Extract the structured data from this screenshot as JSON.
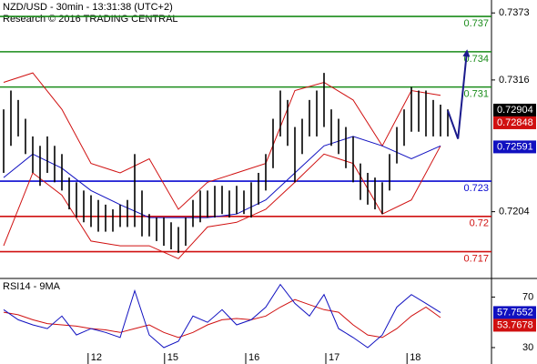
{
  "chart_data": [
    {
      "type": "range",
      "title": "NZD/USD - 30min - 13:31:38 (UTC+2)",
      "subtitle": "Research © 2016 TRADING CENTRAL",
      "color": "#000000",
      "x": [
        0,
        1,
        2,
        3,
        4,
        5,
        6,
        7,
        8,
        9,
        10,
        11,
        12,
        13,
        14,
        15,
        16,
        17,
        18,
        19,
        20,
        21,
        22,
        23,
        24,
        25,
        26,
        27,
        28,
        29,
        30,
        31,
        32,
        33,
        34,
        35,
        36,
        37,
        38,
        39,
        40,
        41,
        42,
        43,
        44,
        45,
        46,
        47,
        48,
        49,
        50,
        51,
        52,
        53,
        54,
        55,
        56,
        57,
        58,
        59,
        60,
        61
      ],
      "highs": [
        0.7291,
        0.7307,
        0.7299,
        0.7283,
        0.7268,
        0.726,
        0.7268,
        0.726,
        0.7253,
        0.7233,
        0.7229,
        0.7222,
        0.7218,
        0.7214,
        0.721,
        0.7206,
        0.721,
        0.7214,
        0.7253,
        0.7222,
        0.7202,
        0.7199,
        0.7199,
        0.7195,
        0.7191,
        0.7199,
        0.7214,
        0.7222,
        0.7222,
        0.7226,
        0.7226,
        0.7222,
        0.7226,
        0.7222,
        0.7229,
        0.7237,
        0.7253,
        0.7283,
        0.7307,
        0.7299,
        0.7276,
        0.7283,
        0.7299,
        0.7307,
        0.7322,
        0.7291,
        0.7283,
        0.7276,
        0.7268,
        0.7245,
        0.7237,
        0.7233,
        0.7229,
        0.7253,
        0.7276,
        0.7291,
        0.731,
        0.7307,
        0.7307,
        0.7299,
        0.7295,
        0.7291
      ],
      "lows": [
        0.7237,
        0.726,
        0.7268,
        0.7253,
        0.7237,
        0.7226,
        0.7237,
        0.7229,
        0.7222,
        0.7206,
        0.7199,
        0.7195,
        0.7191,
        0.7187,
        0.7187,
        0.7187,
        0.7191,
        0.7191,
        0.7191,
        0.7183,
        0.7183,
        0.7179,
        0.7175,
        0.7172,
        0.7169,
        0.7175,
        0.7191,
        0.7195,
        0.7199,
        0.7199,
        0.7202,
        0.7199,
        0.7202,
        0.7202,
        0.7199,
        0.721,
        0.7222,
        0.7241,
        0.7268,
        0.726,
        0.7229,
        0.7253,
        0.7268,
        0.7268,
        0.7276,
        0.726,
        0.7253,
        0.7241,
        0.7229,
        0.7214,
        0.721,
        0.7206,
        0.7202,
        0.7222,
        0.7245,
        0.726,
        0.7272,
        0.7272,
        0.7268,
        0.7268,
        0.7268,
        0.7268
      ],
      "bands": {
        "x": [
          0,
          4,
          8,
          12,
          16,
          20,
          24,
          28,
          32,
          36,
          40,
          44,
          48,
          52,
          56,
          60
        ],
        "upper": [
          0.7314,
          0.7322,
          0.7291,
          0.7245,
          0.7237,
          0.7249,
          0.7206,
          0.7229,
          0.7237,
          0.7245,
          0.7307,
          0.7314,
          0.7299,
          0.726,
          0.7307,
          0.7303
        ],
        "middle": [
          0.7233,
          0.7253,
          0.7241,
          0.7222,
          0.721,
          0.7199,
          0.7199,
          0.7199,
          0.7202,
          0.7214,
          0.7237,
          0.726,
          0.7268,
          0.726,
          0.7249,
          0.726
        ],
        "lower": [
          0.7175,
          0.7237,
          0.7218,
          0.7179,
          0.7175,
          0.7175,
          0.7164,
          0.7191,
          0.7195,
          0.7206,
          0.7229,
          0.7253,
          0.7245,
          0.7202,
          0.7214,
          0.726
        ],
        "band_color": "#d01010",
        "middle_color": "#1010c0"
      },
      "forecast": {
        "x": [
          61,
          62.4,
          63.6
        ],
        "values": [
          0.729,
          0.7266,
          0.7339
        ],
        "color": "#1a1a8c"
      },
      "levels": [
        {
          "value": 0.737,
          "color": "#1a8c1a"
        },
        {
          "value": 0.734,
          "color": "#1a8c1a"
        },
        {
          "value": 0.731,
          "color": "#1a8c1a"
        },
        {
          "value": 0.723,
          "color": "#0a0ad0"
        },
        {
          "value": 0.72,
          "color": "#d01010"
        },
        {
          "value": 0.717,
          "color": "#d01010"
        }
      ],
      "price_labels": [
        {
          "value": 0.72904,
          "color": "#000000"
        },
        {
          "value": 0.72848,
          "color": "#d01010"
        },
        {
          "value": 0.72591,
          "color": "#1010c0"
        }
      ],
      "xlim": [
        -0.5,
        67
      ],
      "xticks": [
        {
          "value": 11.6,
          "label": "12"
        },
        {
          "value": 22.1,
          "label": "15"
        },
        {
          "value": 33.25,
          "label": "16"
        },
        {
          "value": 44.25,
          "label": "17"
        },
        {
          "value": 55.4,
          "label": "18"
        }
      ],
      "ylim": [
        0.7148,
        0.7384
      ],
      "yticks": [
        0.7373,
        0.7316,
        0.7204
      ]
    },
    {
      "type": "line",
      "title": "RSI14 - 9MA",
      "x": [
        0,
        2,
        4,
        6,
        8,
        10,
        12,
        14,
        16,
        18,
        20,
        22,
        24,
        26,
        28,
        30,
        32,
        34,
        36,
        38,
        40,
        42,
        44,
        46,
        48,
        50,
        52,
        54,
        56,
        58,
        60
      ],
      "series": [
        {
          "color": "#1010c0",
          "values": [
            60,
            52,
            48,
            45,
            55,
            40,
            45,
            42,
            38,
            75,
            40,
            30,
            35,
            55,
            50,
            60,
            48,
            52,
            62,
            80,
            65,
            55,
            72,
            45,
            38,
            30,
            40,
            62,
            72,
            65,
            57.7552
          ]
        },
        {
          "color": "#d01010",
          "values": [
            58,
            56,
            52,
            49,
            48,
            47,
            45,
            44,
            42,
            45,
            48,
            42,
            38,
            42,
            48,
            52,
            53,
            52,
            55,
            62,
            68,
            64,
            60,
            58,
            48,
            40,
            38,
            45,
            55,
            62,
            53.7678
          ]
        }
      ],
      "xlim": [
        -0.5,
        67
      ],
      "ylim": [
        17,
        84
      ],
      "yticks": [
        70,
        30
      ]
    }
  ]
}
